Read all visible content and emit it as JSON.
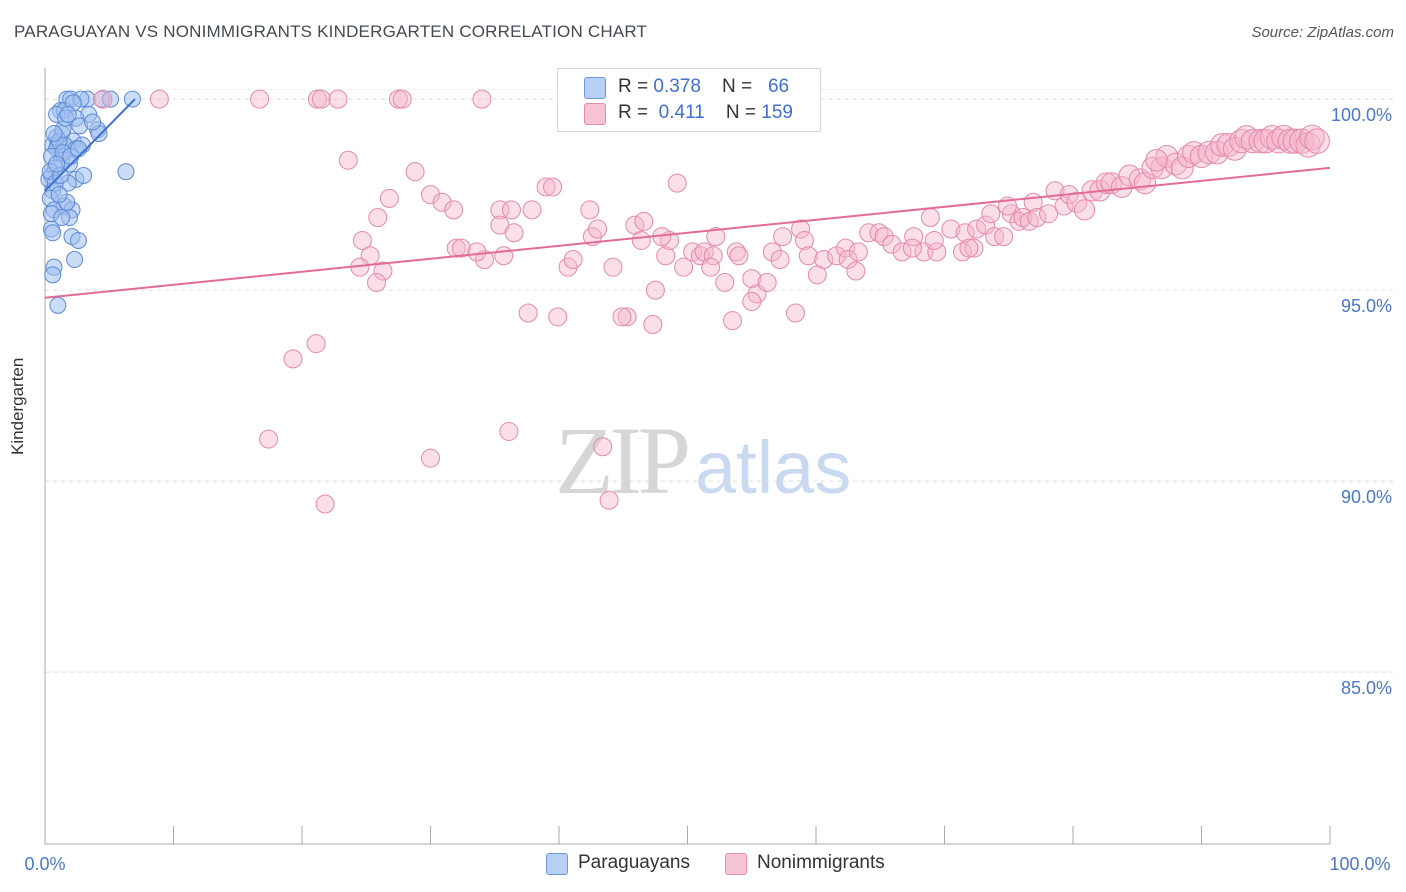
{
  "title": "PARAGUAYAN VS NONIMMIGRANTS KINDERGARTEN CORRELATION CHART",
  "source": "Source: ZipAtlas.com",
  "watermark": {
    "zip": "ZIP",
    "atlas": "atlas"
  },
  "colors": {
    "blue": "#3f6fd1",
    "blue_fill": "#a9c6f0",
    "pink": "#e26b97",
    "pink_fill": "#f4b6cb",
    "grid": "#dddddd",
    "axis_text": "#4a78c8"
  },
  "legend": {
    "row1": {
      "r_label": "R = ",
      "r_value": "0.378",
      "n_label": "N = ",
      "n_value": "66"
    },
    "row2": {
      "r_label": "R = ",
      "r_value": "0.411",
      "n_label": "N = ",
      "n_value": "159"
    }
  },
  "bottom_legend": {
    "paraguayans": "Paraguayans",
    "nonimmigrants": "Nonimmigrants"
  },
  "chart_data": {
    "type": "scatter",
    "title": "PARAGUAYAN VS NONIMMIGRANTS KINDERGARTEN CORRELATION CHART",
    "xlabel": "",
    "ylabel": "Kindergarten",
    "xlim": [
      0,
      100
    ],
    "ylim": [
      80.5,
      100.5
    ],
    "x_tick_labels": [
      "0.0%",
      "100.0%"
    ],
    "y_ticks": [
      {
        "value": 100,
        "label": "100.0%"
      },
      {
        "value": 95,
        "label": "95.0%"
      },
      {
        "value": 90,
        "label": "90.0%"
      },
      {
        "value": 85,
        "label": "85.0%"
      }
    ],
    "series": [
      {
        "name": "Paraguayans",
        "R": 0.378,
        "N": 66,
        "trend": {
          "x": [
            0,
            7
          ],
          "y": [
            97.6,
            100.0
          ]
        },
        "points": [
          [
            1.7,
            100
          ],
          [
            2.0,
            100
          ],
          [
            3.3,
            100
          ],
          [
            4.4,
            100
          ],
          [
            6.8,
            100
          ],
          [
            1.2,
            99.7
          ],
          [
            1.5,
            99.7
          ],
          [
            0.9,
            99.6
          ],
          [
            3.4,
            99.6
          ],
          [
            2.4,
            99.5
          ],
          [
            4.1,
            99.2
          ],
          [
            1.3,
            99.1
          ],
          [
            4.2,
            99.1
          ],
          [
            2.2,
            98.9
          ],
          [
            0.6,
            98.8
          ],
          [
            1.0,
            98.8
          ],
          [
            1.5,
            98.8
          ],
          [
            0.9,
            98.7
          ],
          [
            2.4,
            98.7
          ],
          [
            0.5,
            98.5
          ],
          [
            1.3,
            98.4
          ],
          [
            1.9,
            98.3
          ],
          [
            0.8,
            98.2
          ],
          [
            0.5,
            98.0
          ],
          [
            0.3,
            97.9
          ],
          [
            2.4,
            97.9
          ],
          [
            6.3,
            98.1
          ],
          [
            1.8,
            97.8
          ],
          [
            0.6,
            97.6
          ],
          [
            0.4,
            97.4
          ],
          [
            1.5,
            97.2
          ],
          [
            2.1,
            97.1
          ],
          [
            0.7,
            97.1
          ],
          [
            1.9,
            96.9
          ],
          [
            0.5,
            96.6
          ],
          [
            0.6,
            96.5
          ],
          [
            2.1,
            96.4
          ],
          [
            2.6,
            96.3
          ],
          [
            2.3,
            95.8
          ],
          [
            0.7,
            95.6
          ],
          [
            0.6,
            95.4
          ],
          [
            1.0,
            94.6
          ],
          [
            0.9,
            99.0
          ],
          [
            1.1,
            98.9
          ],
          [
            1.4,
            98.6
          ],
          [
            2.0,
            98.5
          ],
          [
            0.4,
            98.1
          ],
          [
            1.7,
            97.3
          ],
          [
            2.7,
            99.3
          ],
          [
            3.7,
            99.4
          ],
          [
            2.8,
            100
          ],
          [
            5.1,
            100
          ],
          [
            1.4,
            99.2
          ],
          [
            0.8,
            97.8
          ],
          [
            1.2,
            98.0
          ],
          [
            1.6,
            99.5
          ],
          [
            2.9,
            98.8
          ],
          [
            0.7,
            99.1
          ],
          [
            1.1,
            97.5
          ],
          [
            2.2,
            99.9
          ],
          [
            3.0,
            98.0
          ],
          [
            0.5,
            97.0
          ],
          [
            1.8,
            99.6
          ],
          [
            2.6,
            98.7
          ],
          [
            1.3,
            96.9
          ],
          [
            0.9,
            98.3
          ]
        ]
      },
      {
        "name": "Nonimmigrants",
        "R": 0.411,
        "N": 159,
        "trend": {
          "x": [
            0,
            100
          ],
          "y": [
            94.8,
            98.2
          ]
        },
        "points": [
          [
            4.5,
            100
          ],
          [
            8.9,
            100
          ],
          [
            16.7,
            100
          ],
          [
            21.2,
            100
          ],
          [
            21.5,
            100
          ],
          [
            22.8,
            100
          ],
          [
            27.5,
            100
          ],
          [
            27.8,
            100
          ],
          [
            34.0,
            100
          ],
          [
            23.6,
            98.4
          ],
          [
            28.8,
            98.1
          ],
          [
            30.0,
            97.5
          ],
          [
            26.8,
            97.4
          ],
          [
            30.9,
            97.3
          ],
          [
            39.0,
            97.7
          ],
          [
            39.5,
            97.7
          ],
          [
            37.9,
            97.1
          ],
          [
            35.4,
            97.1
          ],
          [
            36.3,
            97.1
          ],
          [
            31.8,
            97.1
          ],
          [
            42.4,
            97.1
          ],
          [
            25.9,
            96.9
          ],
          [
            35.4,
            96.7
          ],
          [
            42.6,
            96.4
          ],
          [
            24.7,
            96.3
          ],
          [
            32.0,
            96.1
          ],
          [
            32.4,
            96.1
          ],
          [
            34.2,
            95.8
          ],
          [
            35.7,
            95.9
          ],
          [
            25.3,
            95.9
          ],
          [
            24.5,
            95.6
          ],
          [
            26.3,
            95.5
          ],
          [
            40.7,
            95.6
          ],
          [
            41.1,
            95.8
          ],
          [
            44.2,
            95.6
          ],
          [
            25.8,
            95.2
          ],
          [
            45.9,
            96.7
          ],
          [
            46.6,
            96.8
          ],
          [
            46.4,
            96.3
          ],
          [
            48.3,
            95.9
          ],
          [
            48.6,
            96.3
          ],
          [
            49.7,
            95.6
          ],
          [
            50.4,
            96.0
          ],
          [
            51.0,
            95.9
          ],
          [
            51.3,
            96.0
          ],
          [
            52.0,
            95.9
          ],
          [
            49.2,
            97.8
          ],
          [
            52.2,
            96.4
          ],
          [
            52.9,
            95.2
          ],
          [
            53.8,
            96.0
          ],
          [
            55.0,
            95.3
          ],
          [
            56.6,
            96.0
          ],
          [
            57.4,
            96.4
          ],
          [
            58.8,
            96.6
          ],
          [
            59.1,
            96.3
          ],
          [
            59.4,
            95.9
          ],
          [
            60.6,
            95.8
          ],
          [
            61.6,
            95.9
          ],
          [
            62.3,
            96.1
          ],
          [
            62.5,
            95.8
          ],
          [
            63.3,
            96.0
          ],
          [
            63.1,
            95.5
          ],
          [
            64.1,
            96.5
          ],
          [
            64.9,
            96.5
          ],
          [
            65.3,
            96.4
          ],
          [
            65.9,
            96.2
          ],
          [
            66.7,
            96.0
          ],
          [
            67.6,
            96.4
          ],
          [
            68.4,
            96.0
          ],
          [
            68.9,
            96.9
          ],
          [
            69.4,
            96.0
          ],
          [
            70.5,
            96.6
          ],
          [
            71.4,
            96.0
          ],
          [
            71.6,
            96.5
          ],
          [
            72.3,
            96.1
          ],
          [
            72.5,
            96.6
          ],
          [
            73.2,
            96.7
          ],
          [
            73.6,
            97.0
          ],
          [
            73.9,
            96.4
          ],
          [
            74.6,
            96.4
          ],
          [
            75.2,
            97.0
          ],
          [
            75.8,
            96.8
          ],
          [
            76.1,
            96.9
          ],
          [
            76.6,
            96.8
          ],
          [
            76.9,
            97.3
          ],
          [
            77.2,
            96.9
          ],
          [
            78.1,
            97.0
          ],
          [
            78.6,
            97.6
          ],
          [
            79.3,
            97.2
          ],
          [
            79.7,
            97.5
          ],
          [
            80.3,
            97.3
          ],
          [
            80.9,
            97.1
          ],
          [
            81.5,
            97.6
          ],
          [
            82.1,
            97.6
          ],
          [
            82.6,
            97.8
          ],
          [
            83.0,
            97.8
          ],
          [
            83.8,
            97.7
          ],
          [
            84.4,
            98.0
          ],
          [
            85.2,
            97.9
          ],
          [
            85.6,
            97.8
          ],
          [
            86.2,
            98.2
          ],
          [
            86.9,
            98.2
          ],
          [
            87.3,
            98.5
          ],
          [
            88.0,
            98.3
          ],
          [
            88.5,
            98.2
          ],
          [
            89.0,
            98.5
          ],
          [
            89.4,
            98.6
          ],
          [
            90.0,
            98.5
          ],
          [
            90.6,
            98.6
          ],
          [
            91.2,
            98.6
          ],
          [
            91.6,
            98.8
          ],
          [
            92.1,
            98.8
          ],
          [
            92.6,
            98.7
          ],
          [
            93.1,
            98.9
          ],
          [
            93.5,
            99.0
          ],
          [
            94.0,
            98.9
          ],
          [
            94.6,
            98.9
          ],
          [
            95.0,
            98.9
          ],
          [
            95.5,
            99.0
          ],
          [
            96.0,
            98.9
          ],
          [
            96.4,
            99.0
          ],
          [
            96.9,
            98.9
          ],
          [
            97.3,
            98.9
          ],
          [
            97.8,
            98.9
          ],
          [
            98.3,
            98.8
          ],
          [
            98.6,
            99.0
          ],
          [
            99.0,
            98.9
          ],
          [
            55.4,
            94.9
          ],
          [
            58.4,
            94.4
          ],
          [
            55.0,
            94.7
          ],
          [
            39.9,
            94.3
          ],
          [
            37.6,
            94.4
          ],
          [
            45.3,
            94.3
          ],
          [
            44.9,
            94.3
          ],
          [
            47.3,
            94.1
          ],
          [
            53.5,
            94.2
          ],
          [
            21.1,
            93.6
          ],
          [
            19.3,
            93.2
          ],
          [
            36.1,
            91.3
          ],
          [
            17.4,
            91.1
          ],
          [
            43.4,
            90.9
          ],
          [
            30.0,
            90.6
          ],
          [
            43.9,
            89.5
          ],
          [
            21.8,
            89.4
          ],
          [
            47.5,
            95.0
          ],
          [
            56.2,
            95.2
          ],
          [
            54.0,
            95.9
          ],
          [
            57.2,
            95.8
          ],
          [
            60.1,
            95.4
          ],
          [
            51.8,
            95.6
          ],
          [
            48.0,
            96.4
          ],
          [
            43.0,
            96.6
          ],
          [
            33.6,
            96.0
          ],
          [
            36.5,
            96.5
          ],
          [
            69.2,
            96.3
          ],
          [
            71.9,
            96.1
          ],
          [
            74.9,
            97.2
          ],
          [
            67.5,
            96.1
          ],
          [
            86.5,
            98.4
          ]
        ]
      }
    ]
  }
}
